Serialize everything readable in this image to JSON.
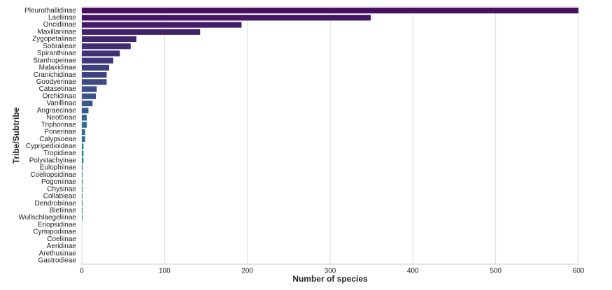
{
  "chart_data": {
    "type": "barh",
    "xlabel": "Number of species",
    "ylabel": "Tribe/Subtribe",
    "categories": [
      "Pleurothallidinae",
      "Laeliinae",
      "Oncidiinae",
      "Maxillariinae",
      "Zygopetalinae",
      "Sobralieae",
      "Spiranthinae",
      "Stanhopeinae",
      "Malaxidinae",
      "Cranichidinae",
      "Goodyerinae",
      "Catasetinae",
      "Orchidinae",
      "Vanillinae",
      "Angraecinae",
      "Neottieae",
      "Triphorinae",
      "Ponerinae",
      "Calypsoeae",
      "Cypripedioideae",
      "Tropidieae",
      "Polystachyinae",
      "Eulophiinae",
      "Coeliopsidinae",
      "Pogoniinae",
      "Chysinae",
      "Collabieae",
      "Dendrobiinae",
      "Bletiinae",
      "Wullschlaegeliinae",
      "Eriopsidinae",
      "Cyrtopodiinae",
      "Coeliinae",
      "Aeridinae",
      "Arethusinae",
      "Gastrodieae"
    ],
    "values": [
      600,
      349,
      193,
      143,
      66,
      59,
      46,
      38,
      33,
      30,
      30,
      18,
      17,
      13,
      8,
      6,
      6,
      4,
      4,
      2,
      2,
      2,
      1,
      1,
      1,
      1,
      1,
      1,
      1,
      1,
      0,
      0,
      0,
      0,
      0,
      0
    ],
    "palette": [
      "#46105f",
      "#3b518b",
      "#21918c",
      "#5ec962"
    ],
    "xlim": [
      0,
      600
    ],
    "xticks": [
      0,
      100,
      200,
      300,
      400,
      500,
      600
    ],
    "grid": true
  }
}
